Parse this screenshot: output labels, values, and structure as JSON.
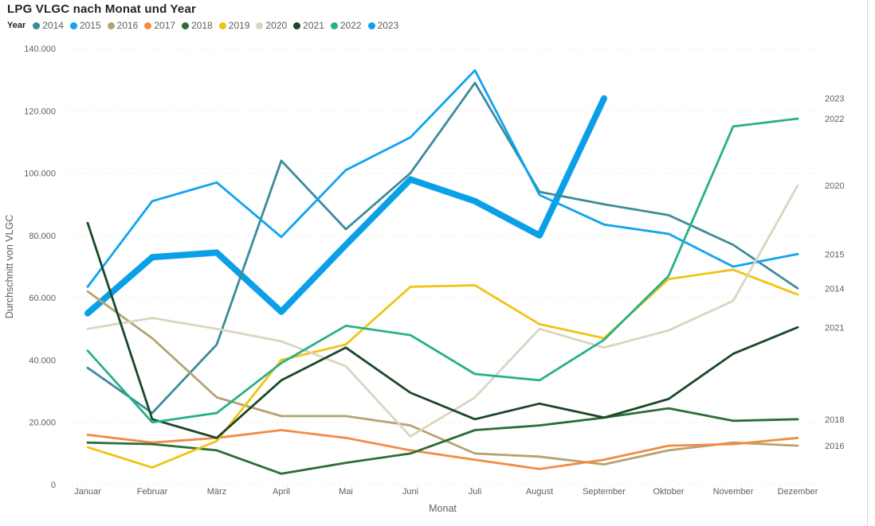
{
  "title": "LPG VLGC nach Monat und Year",
  "legend": {
    "label": "Year",
    "items": [
      {
        "year": "2014",
        "color": "#3d8b99"
      },
      {
        "year": "2015",
        "color": "#0ea4f0"
      },
      {
        "year": "2016",
        "color": "#b5a36f"
      },
      {
        "year": "2017",
        "color": "#f28b43"
      },
      {
        "year": "2018",
        "color": "#2d6d35"
      },
      {
        "year": "2019",
        "color": "#f0c414"
      },
      {
        "year": "2020",
        "color": "#d9d6bf"
      },
      {
        "year": "2021",
        "color": "#1a4728"
      },
      {
        "year": "2022",
        "color": "#27b088"
      },
      {
        "year": "2023",
        "color": "#0aa0e8"
      }
    ]
  },
  "chart_data": {
    "type": "line",
    "title": "LPG VLGC nach Monat und Year",
    "xlabel": "Monat",
    "ylabel": "Durchschnitt von VLGC",
    "ylim": [
      0,
      140000
    ],
    "grid": "horizontal-dotted",
    "legend_position": "top",
    "categories": [
      "Januar",
      "Februar",
      "März",
      "April",
      "Mai",
      "Juni",
      "Juli",
      "August",
      "September",
      "Oktober",
      "November",
      "Dezember"
    ],
    "y_ticks": {
      "values": [
        0,
        20000,
        40000,
        60000,
        80000,
        100000,
        120000,
        140000
      ],
      "labels": [
        "0",
        "20.000",
        "40.000",
        "60.000",
        "80.000",
        "100.000",
        "120.000",
        "140.000"
      ]
    },
    "series": [
      {
        "name": "2014",
        "color": "#3d8b99",
        "thick": false,
        "values": [
          37500,
          23000,
          45000,
          104000,
          82000,
          100000,
          129000,
          94000,
          90000,
          86500,
          77000,
          63000
        ]
      },
      {
        "name": "2015",
        "color": "#0ea4f0",
        "thick": false,
        "values": [
          63500,
          91000,
          97000,
          79500,
          101000,
          111500,
          133000,
          93000,
          83500,
          80500,
          70000,
          74000
        ]
      },
      {
        "name": "2016",
        "color": "#b5a36f",
        "thick": false,
        "values": [
          62000,
          47000,
          28000,
          22000,
          22000,
          19000,
          10000,
          9000,
          6500,
          11000,
          13500,
          12500
        ]
      },
      {
        "name": "2017",
        "color": "#f28b43",
        "thick": false,
        "values": [
          16000,
          13500,
          15000,
          17500,
          15000,
          11000,
          8000,
          5000,
          8000,
          12500,
          13000,
          15000
        ]
      },
      {
        "name": "2018",
        "color": "#2d6d35",
        "thick": false,
        "values": [
          13500,
          13000,
          11000,
          3500,
          7000,
          10000,
          17500,
          19000,
          21500,
          24500,
          20500,
          21000
        ]
      },
      {
        "name": "2019",
        "color": "#f0c414",
        "thick": false,
        "values": [
          12000,
          5500,
          14000,
          40000,
          45000,
          63500,
          64000,
          51500,
          47000,
          66000,
          69000,
          61000
        ]
      },
      {
        "name": "2020",
        "color": "#d9d6bf",
        "thick": false,
        "values": [
          50000,
          53500,
          50000,
          46000,
          38000,
          15500,
          28000,
          50000,
          44000,
          49500,
          59000,
          96000
        ]
      },
      {
        "name": "2021",
        "color": "#1a4728",
        "thick": false,
        "values": [
          84000,
          21000,
          15000,
          33500,
          44000,
          29500,
          21000,
          26000,
          21500,
          27500,
          42000,
          50500
        ]
      },
      {
        "name": "2022",
        "color": "#27b088",
        "thick": false,
        "values": [
          43000,
          20000,
          23000,
          39000,
          51000,
          48000,
          35500,
          33500,
          46500,
          67000,
          115000,
          117500
        ]
      },
      {
        "name": "2023",
        "color": "#0aa0e8",
        "thick": true,
        "values": [
          55000,
          73000,
          74500,
          55500,
          77000,
          98000,
          91000,
          80000,
          124000
        ]
      }
    ],
    "end_labels": [
      "2023",
      "2022",
      "2020",
      "2015",
      "2014",
      "2021",
      "2018",
      "2016"
    ]
  },
  "colors": {
    "title_text": "#252423",
    "axis_text": "#605e5c",
    "gridline": "#e2e2e2",
    "background": "#ffffff"
  }
}
